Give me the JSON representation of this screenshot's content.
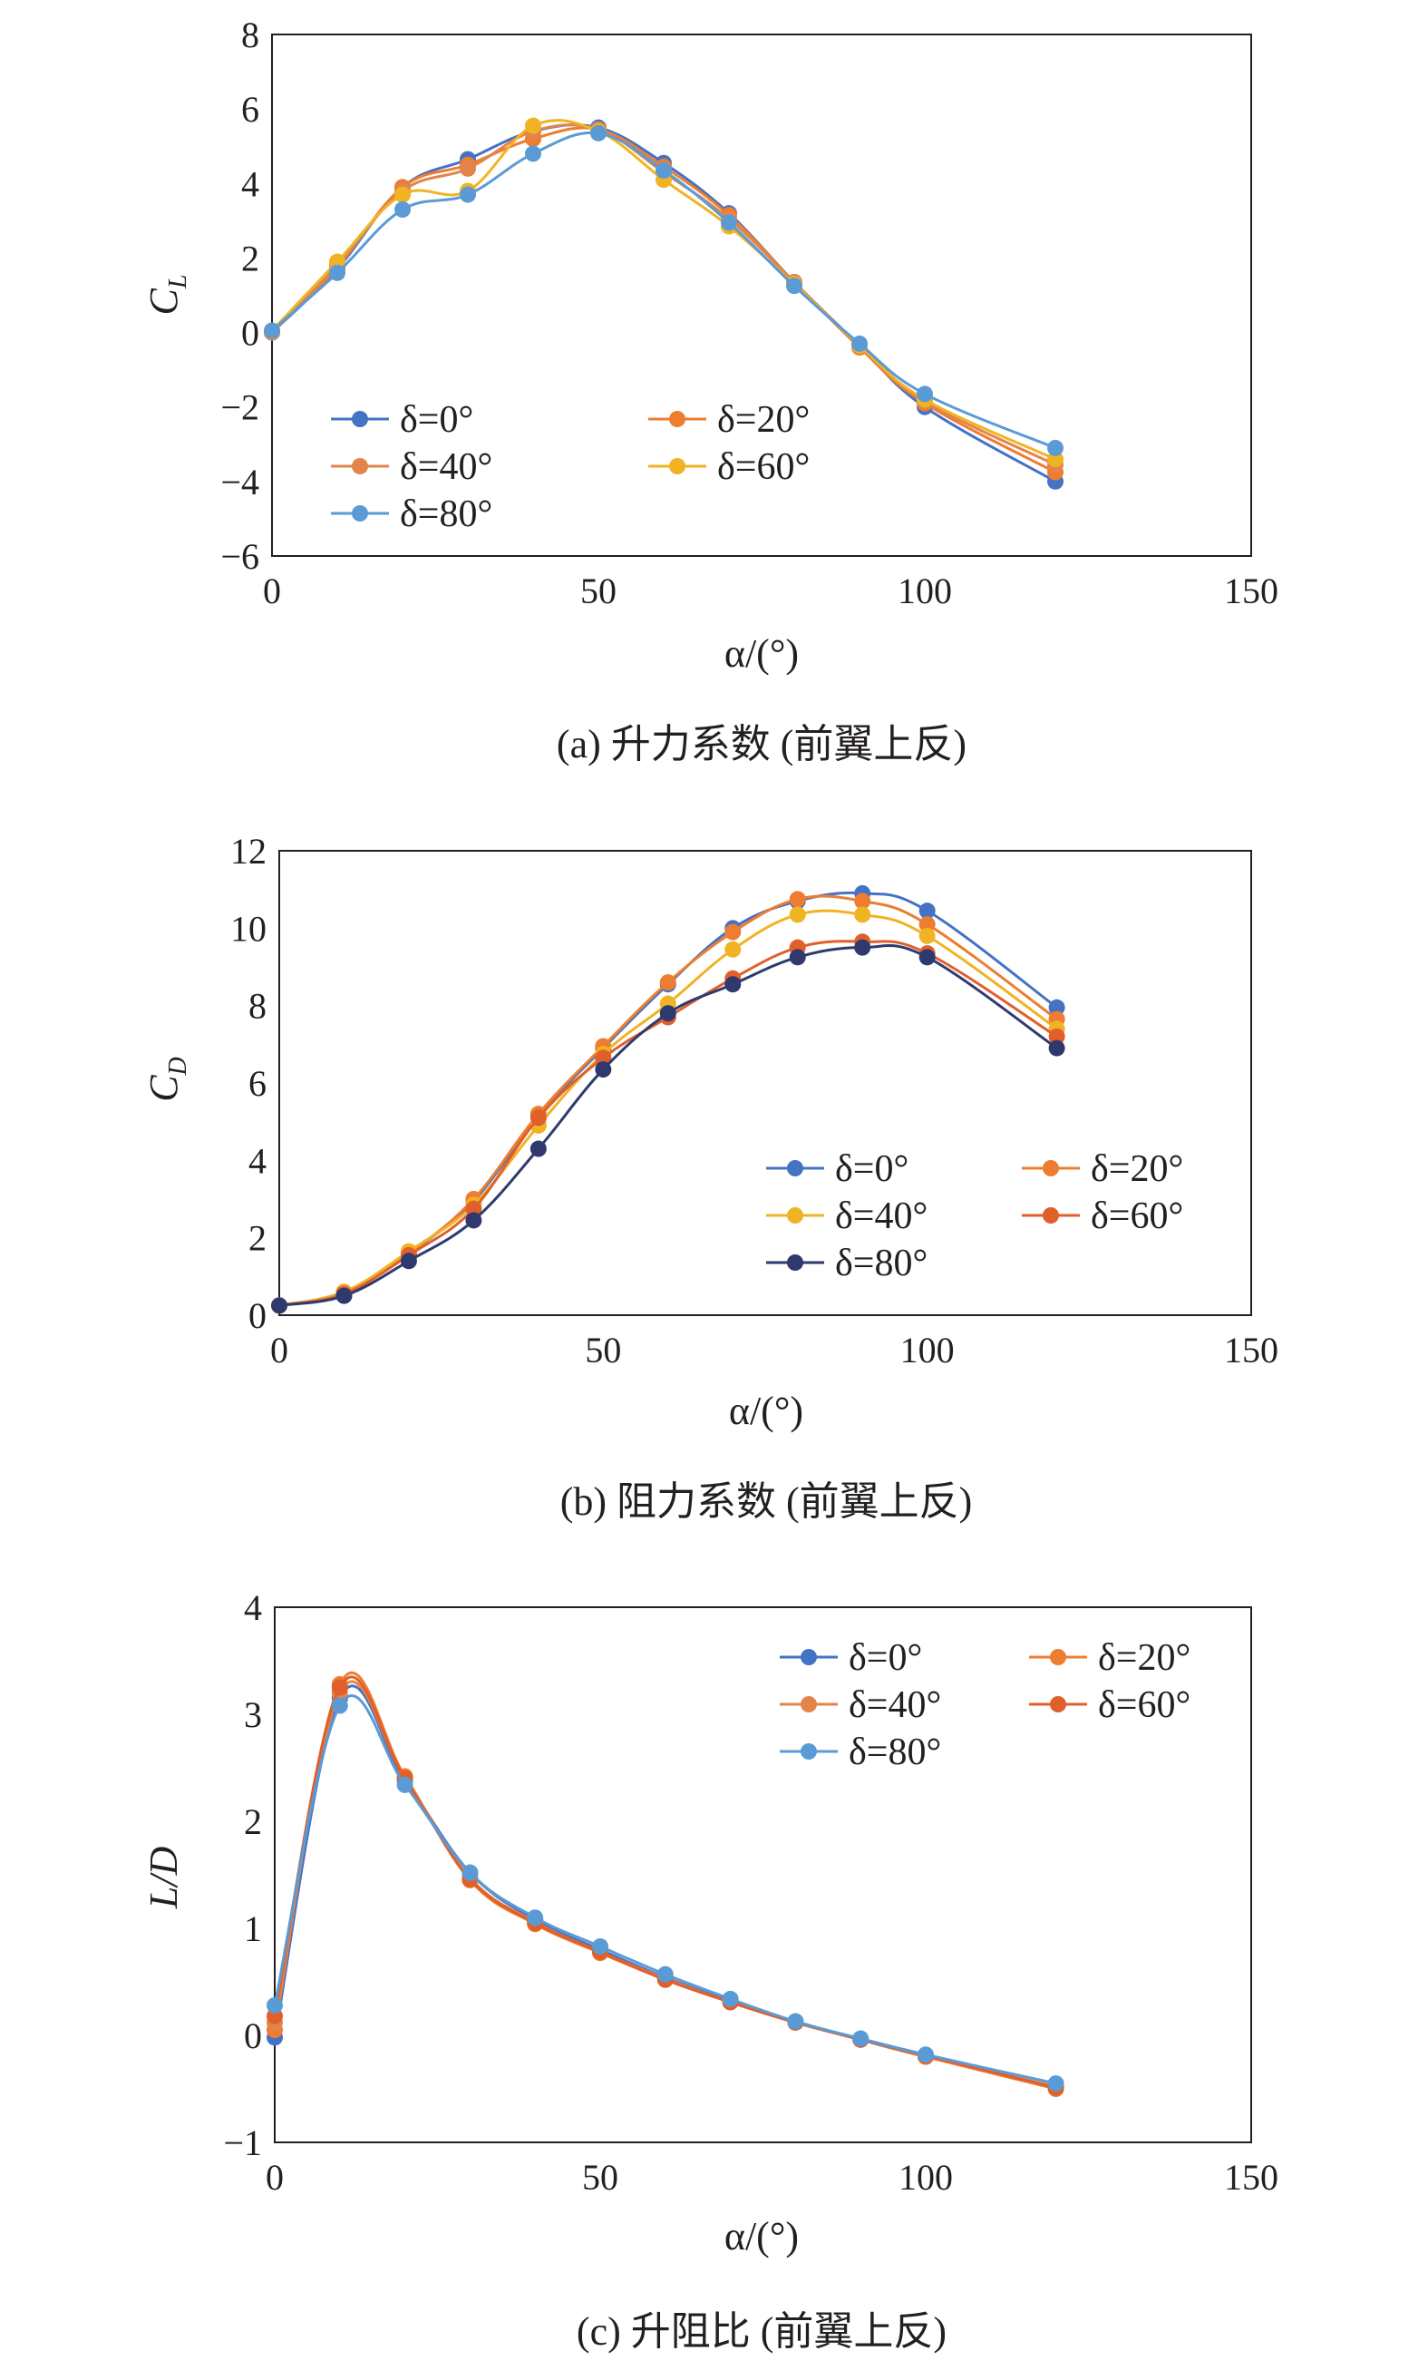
{
  "chart_data": [
    {
      "type": "line",
      "caption": "(a) 升力系数 (前翼上反)",
      "xlabel": "α/(°)",
      "ylabel": "C_L",
      "xlim": [
        0,
        150
      ],
      "ylim": [
        -6,
        8
      ],
      "xticks": [
        0,
        50,
        100,
        150
      ],
      "yticks": [
        -6,
        -4,
        -2,
        0,
        2,
        4,
        6,
        8
      ],
      "ytick_labels": [
        "−6",
        "−4",
        "−2",
        "0",
        "2",
        "4",
        "6",
        "8"
      ],
      "x": [
        0,
        10,
        20,
        30,
        40,
        50,
        60,
        70,
        80,
        90,
        100,
        120
      ],
      "legend_position": "lower-left",
      "series": [
        {
          "name": "δ=0°",
          "color": "#4472c4",
          "values": [
            0.0,
            1.7,
            3.9,
            4.65,
            5.4,
            5.5,
            4.55,
            3.2,
            1.35,
            -0.35,
            -2.0,
            -4.0
          ]
        },
        {
          "name": "δ=20°",
          "color": "#ed7d31",
          "values": [
            0.0,
            1.75,
            3.9,
            4.5,
            5.2,
            5.45,
            4.45,
            3.15,
            1.35,
            -0.4,
            -1.9,
            -3.75
          ]
        },
        {
          "name": "δ=40°",
          "color": "#e3844a",
          "values": [
            0.0,
            1.8,
            3.8,
            4.4,
            5.4,
            5.45,
            4.3,
            3.05,
            1.35,
            -0.35,
            -1.85,
            -3.55
          ]
        },
        {
          "name": "δ=60°",
          "color": "#f0b324",
          "values": [
            0.05,
            1.9,
            3.7,
            3.8,
            5.55,
            5.4,
            4.1,
            2.85,
            1.3,
            -0.35,
            -1.8,
            -3.4
          ]
        },
        {
          "name": "δ=80°",
          "color": "#5b9bd5",
          "values": [
            0.05,
            1.6,
            3.3,
            3.7,
            4.8,
            5.35,
            4.35,
            2.95,
            1.25,
            -0.3,
            -1.65,
            -3.1
          ]
        }
      ],
      "legend_order": [
        "δ=0°",
        "δ=20°",
        "δ=40°",
        "δ=60°",
        "δ=80°"
      ]
    },
    {
      "type": "line",
      "caption": "(b) 阻力系数 (前翼上反)",
      "xlabel": "α/(°)",
      "ylabel": "C_D",
      "xlim": [
        0,
        150
      ],
      "ylim": [
        0,
        12
      ],
      "xticks": [
        0,
        50,
        100,
        150
      ],
      "yticks": [
        0,
        2,
        4,
        6,
        8,
        10,
        12
      ],
      "ytick_labels": [
        "0",
        "2",
        "4",
        "6",
        "8",
        "10",
        "12"
      ],
      "x": [
        0,
        10,
        20,
        30,
        40,
        50,
        60,
        70,
        80,
        90,
        100,
        120
      ],
      "legend_position": "lower-right",
      "series": [
        {
          "name": "δ=0°",
          "color": "#4472c4",
          "values": [
            0.25,
            0.6,
            1.6,
            2.95,
            5.15,
            6.9,
            8.55,
            10.0,
            10.7,
            10.9,
            10.45,
            7.95
          ]
        },
        {
          "name": "δ=20°",
          "color": "#ed7d31",
          "values": [
            0.25,
            0.6,
            1.6,
            3.0,
            5.2,
            6.95,
            8.6,
            9.9,
            10.75,
            10.7,
            10.1,
            7.65
          ]
        },
        {
          "name": "δ=40°",
          "color": "#f0b324",
          "values": [
            0.25,
            0.6,
            1.65,
            2.85,
            4.9,
            6.75,
            8.05,
            9.45,
            10.35,
            10.35,
            9.8,
            7.4
          ]
        },
        {
          "name": "δ=60°",
          "color": "#e15f2b",
          "values": [
            0.25,
            0.55,
            1.55,
            2.75,
            5.1,
            6.65,
            7.7,
            8.7,
            9.5,
            9.65,
            9.35,
            7.2
          ]
        },
        {
          "name": "δ=80°",
          "color": "#2e3a6e",
          "values": [
            0.25,
            0.5,
            1.4,
            2.45,
            4.3,
            6.35,
            7.8,
            8.55,
            9.25,
            9.5,
            9.25,
            6.9
          ]
        }
      ],
      "legend_order": [
        "δ=0°",
        "δ=20°",
        "δ=40°",
        "δ=60°",
        "δ=80°"
      ]
    },
    {
      "type": "line",
      "caption": "(c) 升阻比 (前翼上反)",
      "xlabel": "α/(°)",
      "ylabel": "L/D",
      "xlim": [
        0,
        150
      ],
      "ylim": [
        -1,
        4
      ],
      "xticks": [
        0,
        50,
        100,
        150
      ],
      "yticks": [
        -1,
        0,
        1,
        2,
        3,
        4
      ],
      "ytick_labels": [
        "−1",
        "0",
        "1",
        "2",
        "3",
        "4"
      ],
      "x": [
        0,
        10,
        20,
        30,
        40,
        50,
        60,
        70,
        80,
        90,
        100,
        120
      ],
      "legend_position": "top-right",
      "series": [
        {
          "name": "δ=0°",
          "color": "#4472c4",
          "values": [
            -0.02,
            3.15,
            2.38,
            1.52,
            1.08,
            0.8,
            0.54,
            0.32,
            0.13,
            -0.04,
            -0.2,
            -0.48
          ]
        },
        {
          "name": "δ=20°",
          "color": "#ed7d31",
          "values": [
            0.05,
            3.28,
            2.42,
            1.45,
            1.04,
            0.77,
            0.52,
            0.31,
            0.12,
            -0.04,
            -0.2,
            -0.5
          ]
        },
        {
          "name": "δ=40°",
          "color": "#e3844a",
          "values": [
            0.12,
            3.2,
            2.4,
            1.47,
            1.06,
            0.78,
            0.53,
            0.31,
            0.12,
            -0.04,
            -0.19,
            -0.48
          ]
        },
        {
          "name": "δ=60°",
          "color": "#e15f2b",
          "values": [
            0.18,
            3.25,
            2.4,
            1.46,
            1.05,
            0.78,
            0.52,
            0.31,
            0.12,
            -0.04,
            -0.19,
            -0.49
          ]
        },
        {
          "name": "δ=80°",
          "color": "#5b9bd5",
          "values": [
            0.28,
            3.08,
            2.34,
            1.52,
            1.1,
            0.83,
            0.57,
            0.34,
            0.13,
            -0.03,
            -0.18,
            -0.45
          ]
        }
      ],
      "legend_order": [
        "δ=0°",
        "δ=20°",
        "δ=40°",
        "δ=60°",
        "δ=80°"
      ]
    }
  ]
}
